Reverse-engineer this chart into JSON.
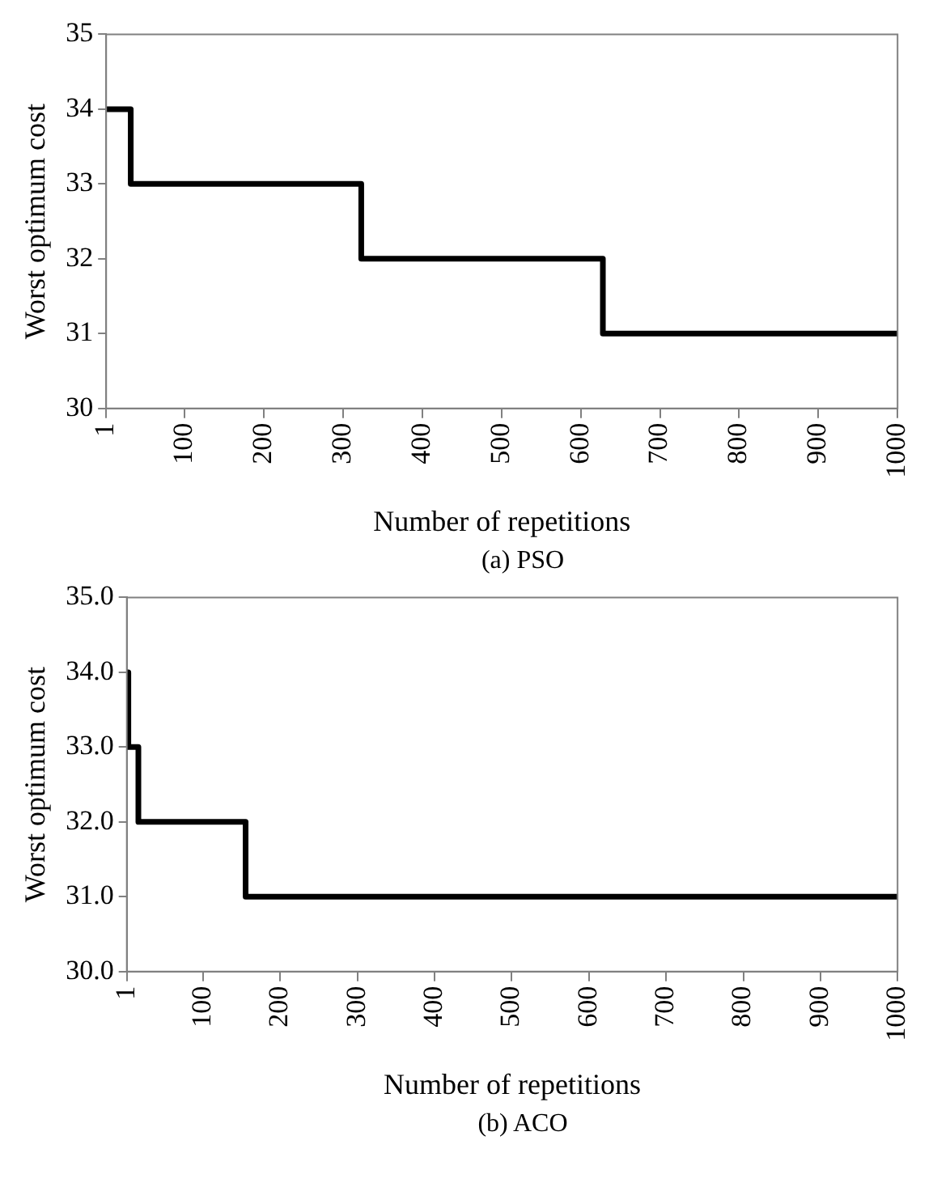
{
  "chart_data": [
    {
      "type": "step",
      "xlabel": "Number of repetitions",
      "ylabel": "Worst optimum cost",
      "annotations": [
        "(a) PSO"
      ],
      "x": [
        1,
        32,
        323,
        628,
        1000
      ],
      "series": [
        {
          "color": "#000000",
          "values": [
            34,
            33,
            32,
            31,
            31
          ]
        }
      ],
      "xlim": [
        1,
        1000
      ],
      "xticks": [
        1,
        100,
        200,
        300,
        400,
        500,
        600,
        700,
        800,
        900,
        1000
      ],
      "ylim": [
        30,
        35
      ],
      "yticks": [
        30,
        31,
        32,
        33,
        34,
        35
      ],
      "grid": false,
      "legend": false,
      "marker": "none"
    },
    {
      "type": "step",
      "xlabel": "Number of repetitions",
      "ylabel": "Worst optimum cost",
      "annotations": [
        "(b) ACO"
      ],
      "x": [
        1,
        3,
        16,
        155,
        1000
      ],
      "series": [
        {
          "color": "#000000",
          "values": [
            34,
            33,
            32,
            31,
            31
          ]
        }
      ],
      "xlim": [
        1,
        1000
      ],
      "xticks": [
        1,
        100,
        200,
        300,
        400,
        500,
        600,
        700,
        800,
        900,
        1000
      ],
      "ylim": [
        30,
        35
      ],
      "yticks": [
        {
          "value": 30,
          "label": "30.0"
        },
        {
          "value": 31,
          "label": "31.0"
        },
        {
          "value": 32,
          "label": "32.0"
        },
        {
          "value": 33,
          "label": "33.0"
        },
        {
          "value": 34,
          "label": "34.0"
        },
        {
          "value": 35,
          "label": "35.0"
        }
      ],
      "grid": false,
      "legend": false,
      "marker": "none"
    }
  ]
}
